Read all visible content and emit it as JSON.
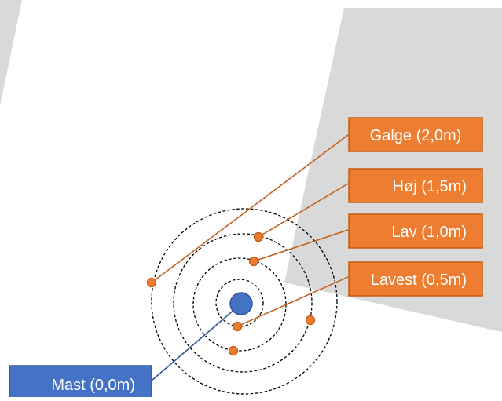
{
  "colors": {
    "background": "#ffffff",
    "shadow": "#d9d9d9",
    "orange_box": "#ED7D31",
    "orange_marker": "#ED7D31",
    "orange_line": "#C55A11",
    "blue_box": "#4472C4",
    "blue_line": "#2F5597",
    "box_text": "#ffffff",
    "circle_stroke": "#000000"
  },
  "labels": {
    "galge": "Galge (2,0m)",
    "hoj": "Høj (1,5m)",
    "lav": "Lav (1,0m)",
    "lavest": "Lavest (0,5m)",
    "mast": "Mast (0,0m)"
  }
}
